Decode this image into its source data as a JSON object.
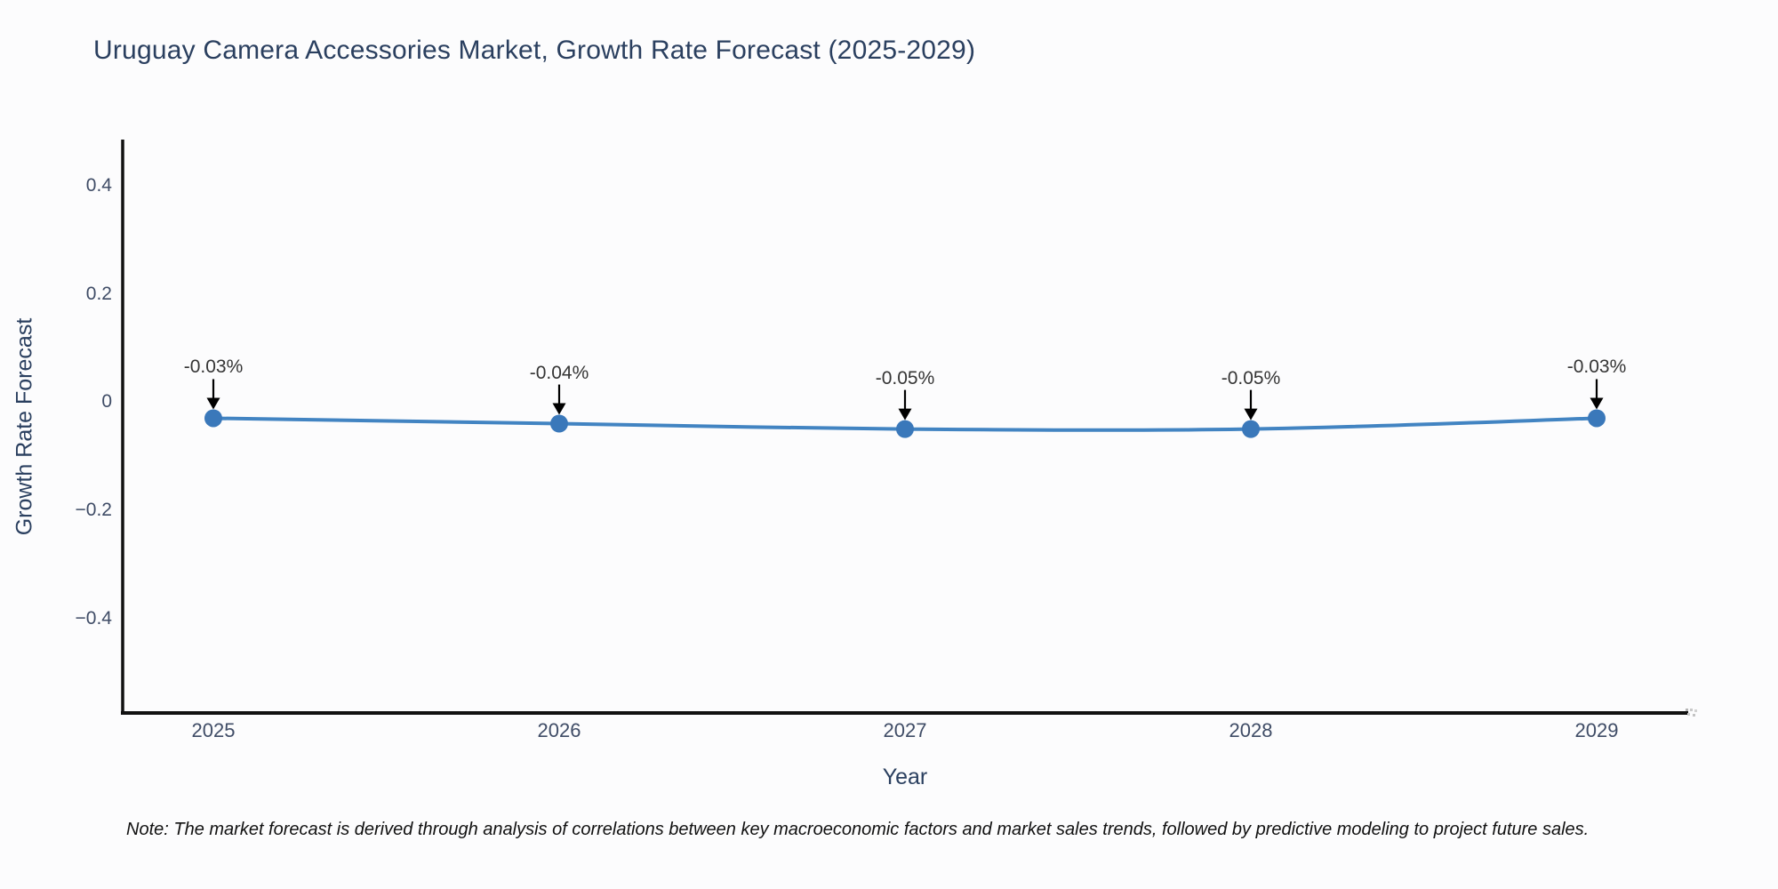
{
  "page": {
    "background": "#fcfcfd"
  },
  "title": {
    "text": "Uruguay Camera Accessories Market, Growth Rate Forecast (2025-2029)",
    "color": "#2a3f5f"
  },
  "note": {
    "text": "Note: The market forecast is derived through analysis of correlations between key macroeconomic factors and market sales trends, followed by predictive modeling to project future sales."
  },
  "chart_data": {
    "type": "line",
    "title": "Uruguay Camera Accessories Market, Growth Rate Forecast (2025-2029)",
    "xlabel": "Year",
    "ylabel": "Growth Rate Forecast",
    "categories": [
      "2025",
      "2026",
      "2027",
      "2028",
      "2029"
    ],
    "series": [
      {
        "name": "Growth Rate Forecast",
        "values": [
          -0.03,
          -0.04,
          -0.05,
          -0.05,
          -0.03
        ],
        "point_labels": [
          "-0.03%",
          "-0.04%",
          "-0.05%",
          "-0.05%",
          "-0.03%"
        ]
      }
    ],
    "y_ticks": [
      {
        "value": 0.4,
        "label": "0.4"
      },
      {
        "value": 0.2,
        "label": "0.2"
      },
      {
        "value": 0,
        "label": "0"
      },
      {
        "value": -0.2,
        "label": "−0.2"
      },
      {
        "value": -0.4,
        "label": "−0.4"
      }
    ],
    "ylim": [
      -0.575,
      0.482
    ],
    "grid": false,
    "legend": false,
    "annotation_style": "text-with-down-arrow",
    "line_shape": "spline",
    "colors": {
      "line": "#4284c2",
      "marker": "#3a78ba",
      "axis": "#111111",
      "title_text": "#2a3f5f",
      "axis_title_text": "#2a3f5f",
      "tick_text": "#3f4c66",
      "annotation_text": "#353535",
      "arrow": "#000000"
    }
  }
}
